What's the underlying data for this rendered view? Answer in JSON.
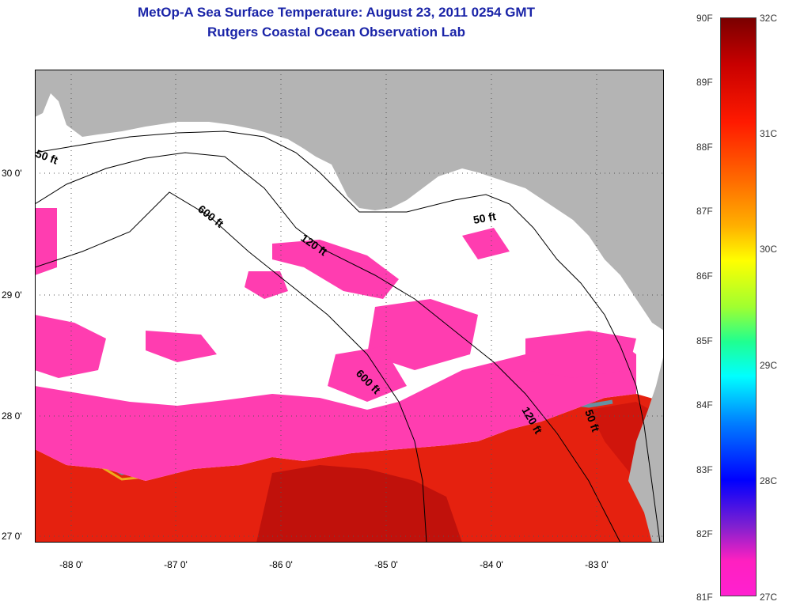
{
  "title": {
    "line1": "MetOp-A Sea Surface Temperature:  August 23, 2011 0254 GMT",
    "line2": "Rutgers Coastal Ocean Observation Lab"
  },
  "axes": {
    "x_ticks": [
      "-88 0'",
      "-87 0'",
      "-86 0'",
      "-85 0'",
      "-84 0'",
      "-83 0'"
    ],
    "y_ticks": [
      "30 0'",
      "29 0'",
      "28 0'",
      "27 0'"
    ]
  },
  "contours": [
    "50 ft",
    "50 ft",
    "120 ft",
    "120 ft",
    "600 ft",
    "600 ft",
    "50 ft"
  ],
  "colorbar": {
    "f_labels": [
      "90F",
      "89F",
      "88F",
      "87F",
      "86F",
      "85F",
      "84F",
      "83F",
      "82F",
      "81F"
    ],
    "c_labels": [
      "32C",
      "31C",
      "30C",
      "29C",
      "28C",
      "27C"
    ]
  },
  "colors": {
    "land": "#b4b4b4",
    "cloud": "#ffffff",
    "cool_water": "#ff3db0",
    "warm_water": "#e8160f",
    "title": "#1a24a8"
  }
}
